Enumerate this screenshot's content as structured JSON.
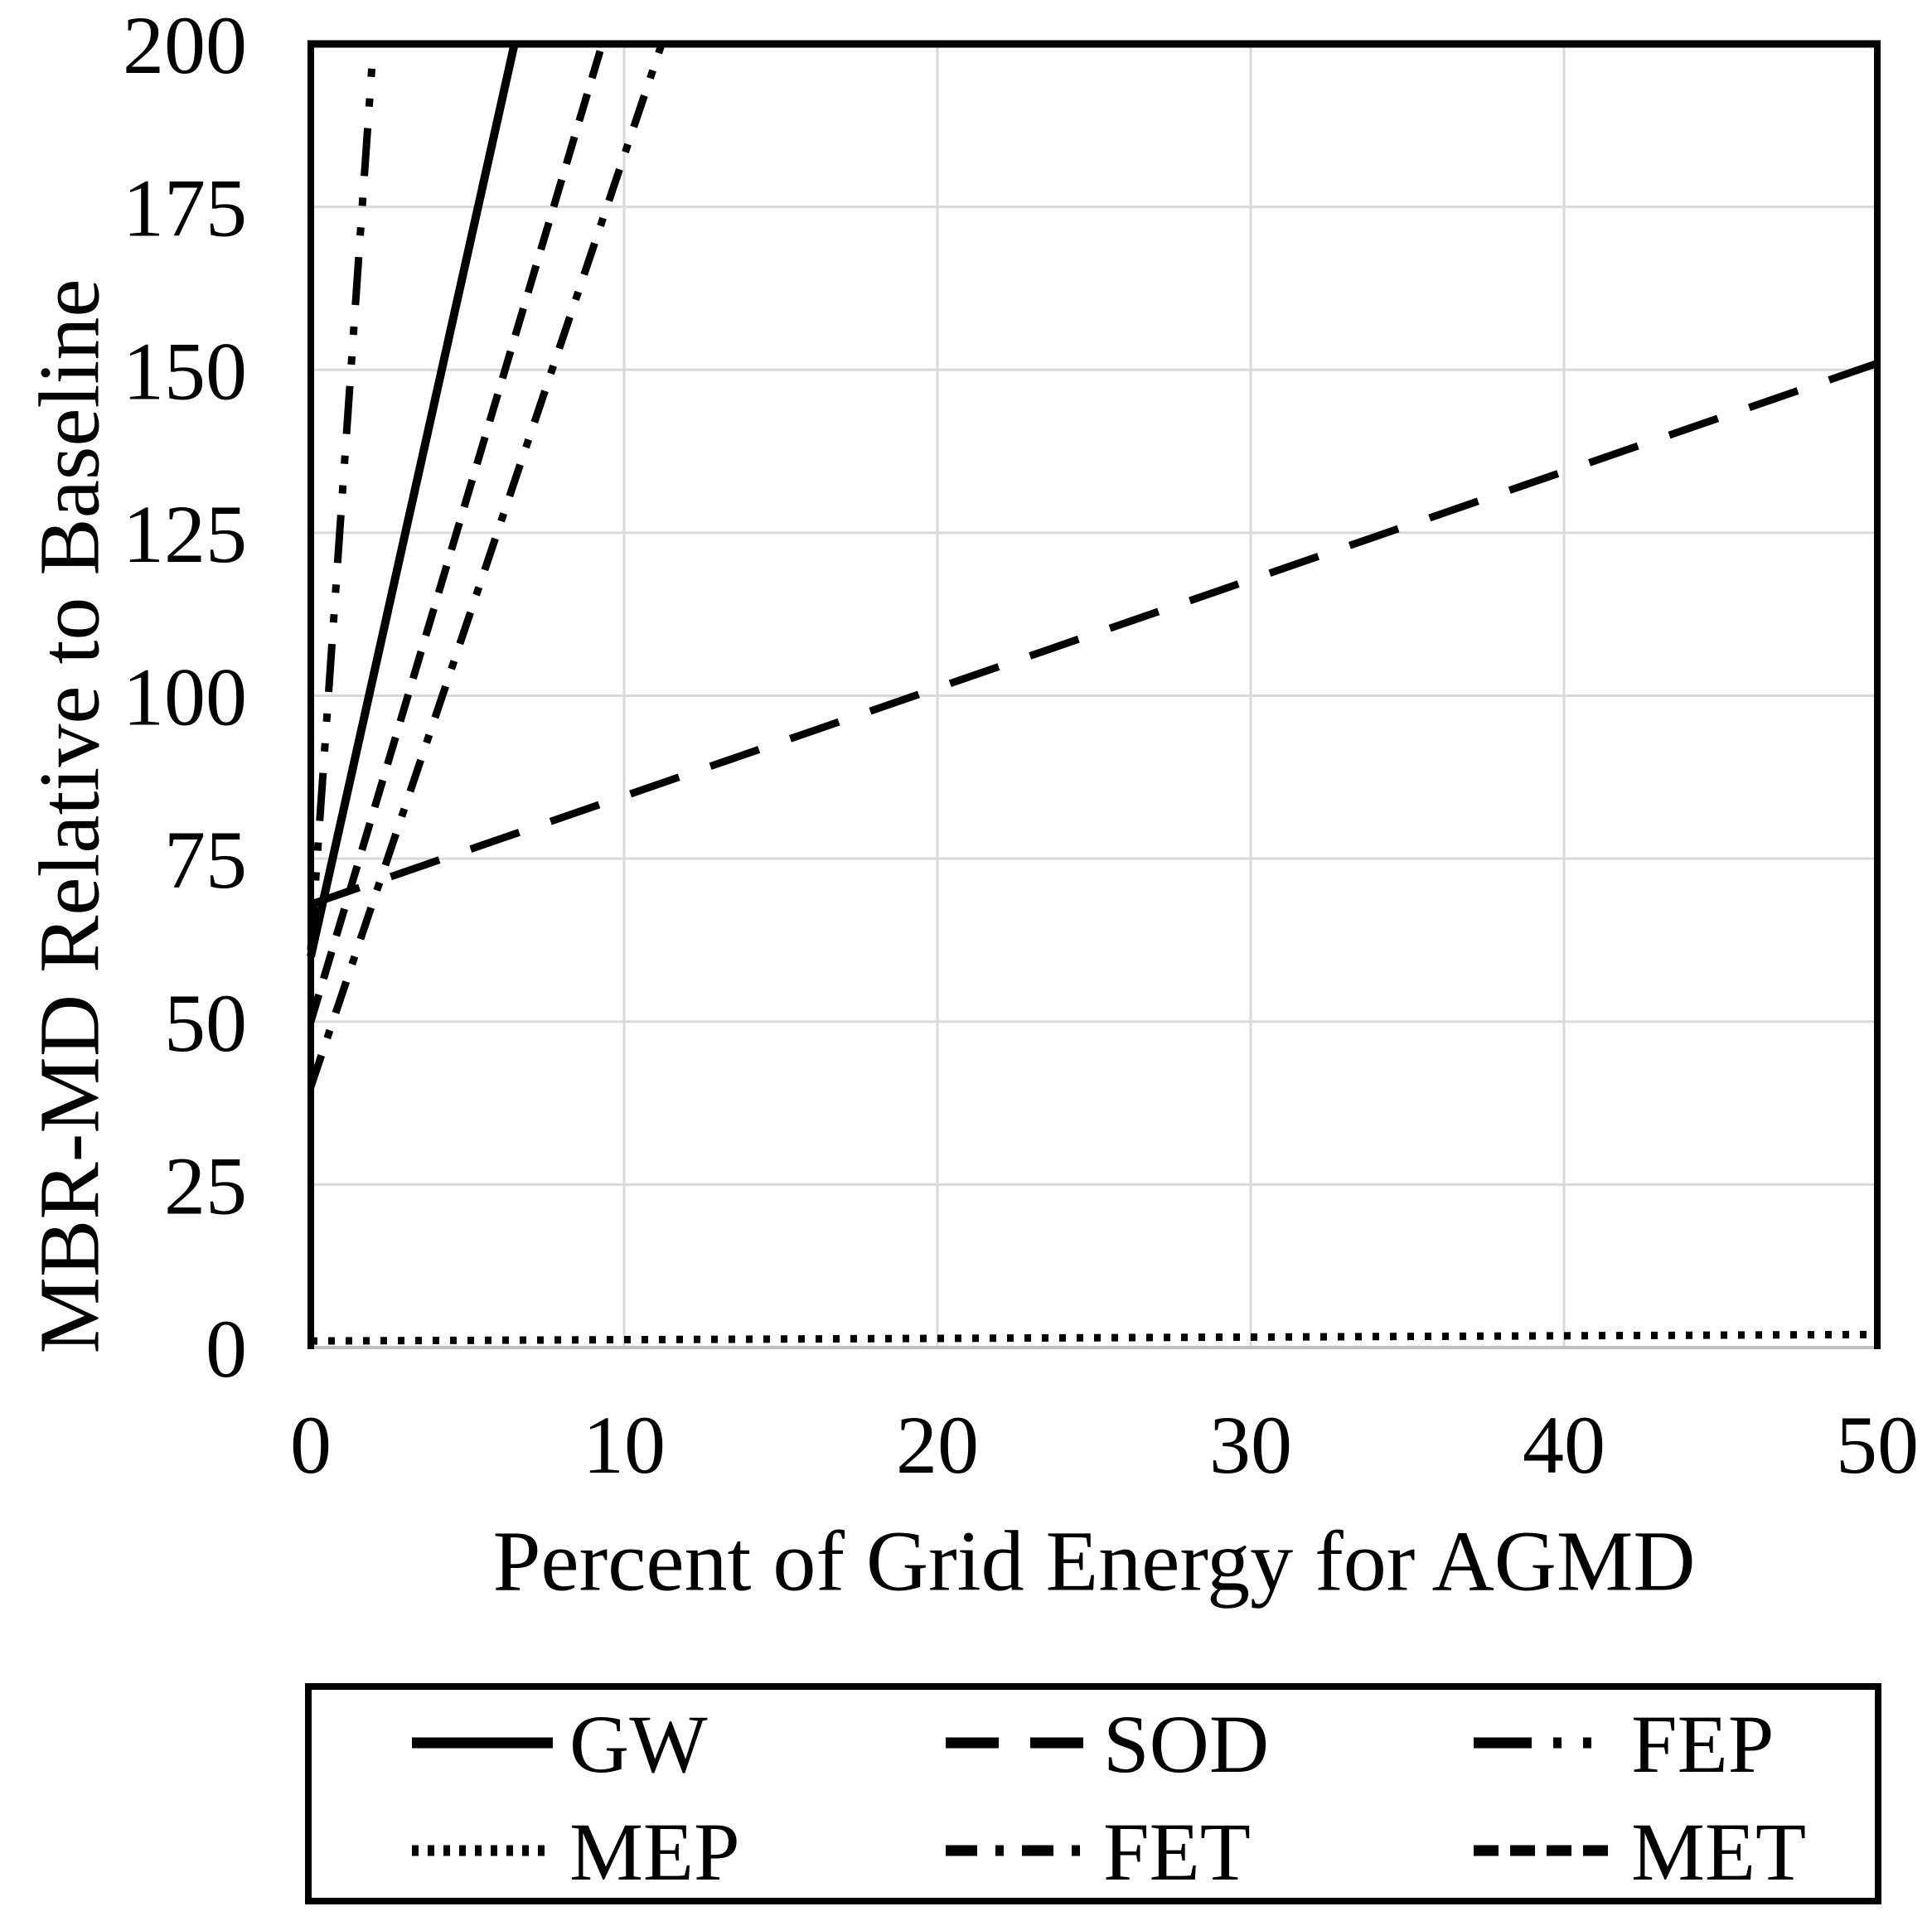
{
  "chart_data": {
    "type": "line",
    "title": "",
    "xlabel": "Percent of Grid Energy for AGMD",
    "ylabel": "MBR-MD Relative to Baseline",
    "xlim": [
      0,
      50
    ],
    "ylim": [
      0,
      200
    ],
    "xticks": [
      0,
      10,
      20,
      30,
      40,
      50
    ],
    "yticks": [
      0,
      25,
      50,
      75,
      100,
      125,
      150,
      175,
      200
    ],
    "grid": true,
    "legend_position": "bottom-box",
    "line_color": "#000000",
    "gridline_color": "#d9d9d9",
    "series": [
      {
        "name": "GW",
        "style": "solid",
        "points": [
          [
            0,
            60
          ],
          [
            6.5,
            200
          ]
        ],
        "clipped_at_top": true
      },
      {
        "name": "SOD",
        "style": "long-dash",
        "points": [
          [
            0,
            68
          ],
          [
            50,
            151
          ]
        ],
        "clipped_at_top": false
      },
      {
        "name": "FEP",
        "style": "dash-dot-dot",
        "points": [
          [
            0,
            61
          ],
          [
            2.0,
            200
          ]
        ],
        "clipped_at_top": true
      },
      {
        "name": "MEP",
        "style": "dotted",
        "points": [
          [
            0,
            1
          ],
          [
            50,
            2
          ]
        ],
        "clipped_at_top": false
      },
      {
        "name": "FET",
        "style": "dash-dot",
        "points": [
          [
            0,
            40
          ],
          [
            11.2,
            200
          ]
        ],
        "clipped_at_top": true
      },
      {
        "name": "MET",
        "style": "short-dash",
        "points": [
          [
            0,
            50
          ],
          [
            9.3,
            200
          ]
        ],
        "clipped_at_top": true
      }
    ]
  }
}
